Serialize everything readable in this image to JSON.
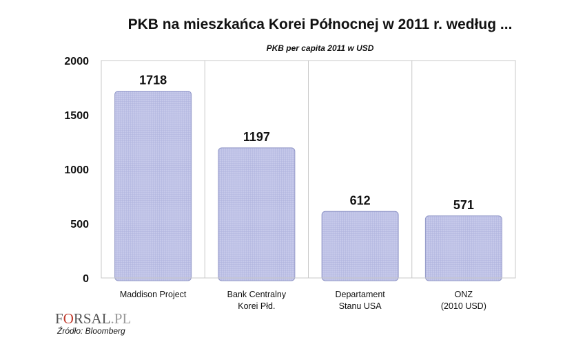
{
  "chart_data": {
    "type": "bar",
    "title": "PKB na mieszkańca Korei Północnej w 2011 r. według ...",
    "subtitle": "PKB per capita 2011 w USD",
    "categories": [
      [
        "Maddison Project"
      ],
      [
        "Bank Centralny",
        "Korei Płd."
      ],
      [
        "Departament",
        "Stanu USA"
      ],
      [
        "ONZ",
        "(2010 USD)"
      ]
    ],
    "values": [
      1718,
      1197,
      612,
      571
    ],
    "ylim": [
      0,
      2000
    ],
    "yticks": [
      0,
      500,
      1000,
      1500,
      2000
    ],
    "xlabel": "",
    "ylabel": "",
    "grid": "vertical category separators",
    "bar_color": "#b9bde3",
    "bar_edge": "#9298c8"
  },
  "logo": {
    "pre": "F",
    "o": "O",
    "post": "RSAL",
    "tld": ".PL"
  },
  "source": "Źródło: Bloomberg"
}
